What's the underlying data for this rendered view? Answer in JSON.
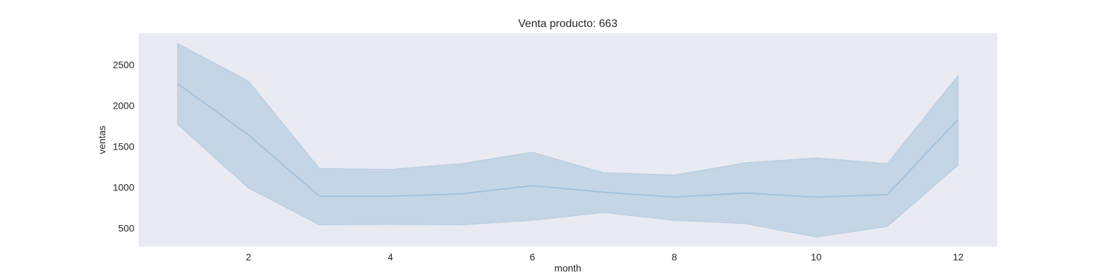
{
  "chart_data": {
    "type": "line",
    "title": "Venta producto: 663",
    "xlabel": "month",
    "ylabel": "ventas",
    "x": [
      1,
      2,
      3,
      4,
      5,
      6,
      7,
      8,
      9,
      10,
      11,
      12
    ],
    "series": [
      {
        "values": [
          2270,
          1640,
          890,
          890,
          920,
          1020,
          940,
          880,
          930,
          880,
          910,
          1830
        ],
        "ci_upper": [
          2760,
          2300,
          1230,
          1220,
          1290,
          1430,
          1180,
          1150,
          1300,
          1360,
          1290,
          2370
        ],
        "ci_lower": [
          1770,
          990,
          540,
          545,
          540,
          595,
          690,
          595,
          555,
          390,
          520,
          1270
        ]
      }
    ],
    "xticks": [
      2,
      4,
      6,
      8,
      10,
      12
    ],
    "yticks": [
      500,
      1000,
      1500,
      2000,
      2500
    ],
    "xlim": [
      0.45,
      12.55
    ],
    "ylim": [
      275,
      2885
    ],
    "grid": false,
    "colors": {
      "line": "#9dbfd9",
      "band": "#9dbfd9",
      "background": "#eaeaf2"
    }
  }
}
